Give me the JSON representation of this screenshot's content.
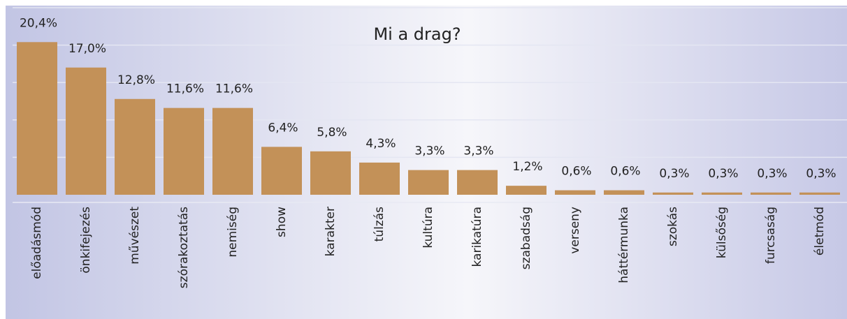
{
  "chart_data": {
    "type": "bar",
    "title": "Mi a drag?",
    "categories": [
      "előadásmód",
      "önkifejezés",
      "művészet",
      "szórakoztatás",
      "nemiség",
      "show",
      "karakter",
      "túlzás",
      "kultúra",
      "karikatúra",
      "szabadság",
      "verseny",
      "háttérmunka",
      "szokás",
      "külsőség",
      "furcsaság",
      "életmód"
    ],
    "values": [
      20.4,
      17.0,
      12.8,
      11.6,
      11.6,
      6.4,
      5.8,
      4.3,
      3.3,
      3.3,
      1.2,
      0.6,
      0.6,
      0.3,
      0.3,
      0.3,
      0.3
    ],
    "value_labels": [
      "20,4%",
      "17,0%",
      "12,8%",
      "11,6%",
      "11,6%",
      "6,4%",
      "5,8%",
      "4,3%",
      "3,3%",
      "3,3%",
      "1,2%",
      "0,6%",
      "0,6%",
      "0,3%",
      "0,3%",
      "0,3%",
      "0,3%"
    ],
    "color": "#c39158",
    "ylim": [
      0,
      25
    ],
    "yticks": [
      5,
      10,
      15,
      20,
      25
    ],
    "grid": true
  }
}
